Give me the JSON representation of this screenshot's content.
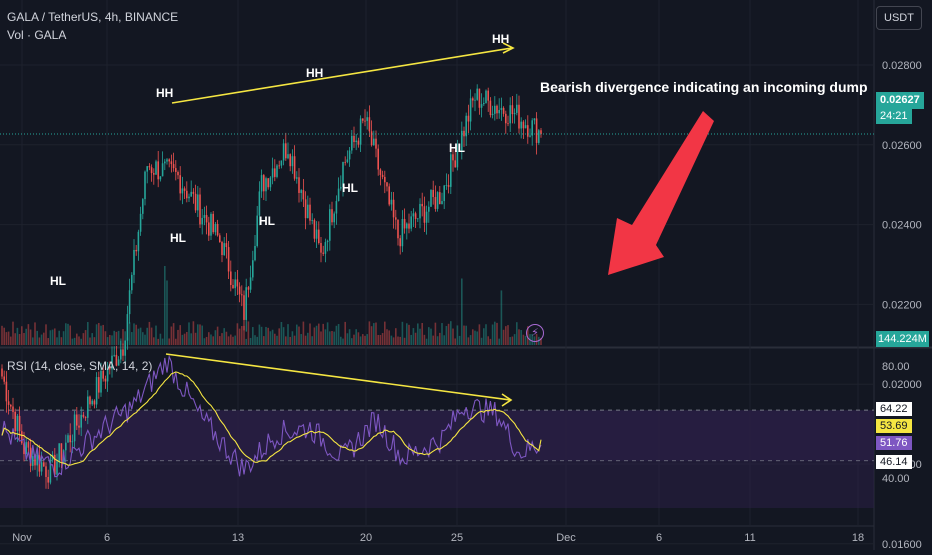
{
  "header": {
    "symbol": "GALA / TetherUS, 4h, BINANCE",
    "volume_label": "Vol · GALA",
    "currency_button": "USDT"
  },
  "rsi_panel": {
    "label": "RSI (14, close, SMA, 14, 2)"
  },
  "annotation": {
    "text": "Bearish divergence indicating an incoming dump"
  },
  "pattern_labels": [
    "HH",
    "HH",
    "HH",
    "HL",
    "HL",
    "HL",
    "HL",
    "HL"
  ],
  "price_scale": {
    "ticks": [
      "0.02800",
      "0.02600",
      "0.02400",
      "0.02200",
      "0.02000",
      "0.01800",
      "0.01600"
    ],
    "current_price": "0.02627",
    "countdown": "24:21",
    "volume_badge": "144.224M"
  },
  "rsi_scale": {
    "ticks": [
      "80.00",
      "40.00"
    ],
    "badges": [
      "64.22",
      "53.69",
      "51.76",
      "46.14"
    ]
  },
  "time_axis": {
    "ticks": [
      "Nov",
      "6",
      "13",
      "20",
      "25",
      "Dec",
      "6",
      "11",
      "18"
    ]
  },
  "colors": {
    "background": "#131722",
    "up_candle": "#26a69a",
    "down_candle": "#ef5350",
    "trendline": "#f5e642",
    "arrow": "#f23645",
    "rsi_line": "#7e57c2",
    "rsi_ma": "#f5e642",
    "rsi_band": "#2a1f45"
  },
  "chart_data": {
    "type": "candlestick",
    "title": "GALA / TetherUS, 4h, BINANCE",
    "x_ticks": [
      "Nov",
      "6",
      "13",
      "20",
      "25",
      "Dec",
      "6",
      "11",
      "18"
    ],
    "price_ylim": [
      0.015,
      0.029
    ],
    "price_keypoints": [
      {
        "t": 0,
        "price": 0.0202
      },
      {
        "t": 10,
        "price": 0.0184
      },
      {
        "t": 22,
        "price": 0.0178
      },
      {
        "t": 40,
        "price": 0.0196
      },
      {
        "t": 55,
        "price": 0.021
      },
      {
        "t": 66,
        "price": 0.0255
      },
      {
        "t": 80,
        "price": 0.0252
      },
      {
        "t": 100,
        "price": 0.0235
      },
      {
        "t": 110,
        "price": 0.0218
      },
      {
        "t": 118,
        "price": 0.025
      },
      {
        "t": 130,
        "price": 0.026
      },
      {
        "t": 145,
        "price": 0.0232
      },
      {
        "t": 155,
        "price": 0.0255
      },
      {
        "t": 165,
        "price": 0.0266
      },
      {
        "t": 180,
        "price": 0.0237
      },
      {
        "t": 200,
        "price": 0.0248
      },
      {
        "t": 215,
        "price": 0.0272
      },
      {
        "t": 232,
        "price": 0.0268
      },
      {
        "t": 245,
        "price": 0.0263
      }
    ],
    "current_price": 0.02627,
    "volume_latest": "144.224M",
    "rsi": {
      "label": "RSI (14, close, SMA, 14, 2)",
      "ylim": [
        30,
        90
      ],
      "upper_band": 64.22,
      "lower_band": 46.14,
      "rsi_latest": 51.76,
      "rsi_ma_latest": 53.69,
      "keypoints": [
        {
          "t": 0,
          "rsi": 58
        },
        {
          "t": 12,
          "rsi": 48
        },
        {
          "t": 25,
          "rsi": 44
        },
        {
          "t": 45,
          "rsi": 57
        },
        {
          "t": 60,
          "rsi": 66
        },
        {
          "t": 75,
          "rsi": 82
        },
        {
          "t": 90,
          "rsi": 62
        },
        {
          "t": 110,
          "rsi": 43
        },
        {
          "t": 125,
          "rsi": 56
        },
        {
          "t": 140,
          "rsi": 58
        },
        {
          "t": 155,
          "rsi": 47
        },
        {
          "t": 170,
          "rsi": 61
        },
        {
          "t": 182,
          "rsi": 47
        },
        {
          "t": 200,
          "rsi": 54
        },
        {
          "t": 210,
          "rsi": 66
        },
        {
          "t": 225,
          "rsi": 63
        },
        {
          "t": 235,
          "rsi": 49
        },
        {
          "t": 245,
          "rsi": 52
        }
      ]
    }
  }
}
